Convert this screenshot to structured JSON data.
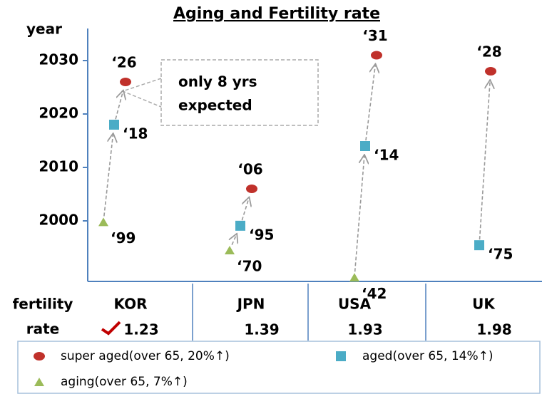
{
  "chart_data": {
    "type": "scatter",
    "title": "Aging and Fertility rate",
    "y_label": "year",
    "row_label": [
      "fertility",
      "rate"
    ],
    "annotation": [
      "only 8 yrs",
      "expected"
    ],
    "categories": [
      "KOR",
      "JPN",
      "USA",
      "UK"
    ],
    "fertility_rate": [
      1.23,
      1.39,
      1.93,
      1.98
    ],
    "ylim": [
      1940,
      2036
    ],
    "yticks": [
      2000,
      2010,
      2020,
      2030
    ],
    "series": [
      {
        "name": "super aged(over 65, 20%↑)",
        "color": "#c0312b",
        "marker": "circle",
        "values": [
          2026,
          2006,
          2031,
          2028
        ],
        "value_labels": [
          "‘26",
          "‘06",
          "‘31",
          "‘28"
        ]
      },
      {
        "name": "aged(over 65, 14%↑)",
        "color": "#4bacc6",
        "marker": "square",
        "values": [
          2018,
          1995,
          2014,
          1975
        ],
        "value_labels": [
          "‘18",
          "‘95",
          "‘14",
          "‘75"
        ]
      },
      {
        "name": "aging(over 65, 7%↑)",
        "color": "#9bbb59",
        "marker": "triangle",
        "values": [
          1999,
          1970,
          1942,
          null
        ],
        "value_labels": [
          "‘99",
          "‘70",
          "‘42",
          null
        ]
      }
    ]
  }
}
